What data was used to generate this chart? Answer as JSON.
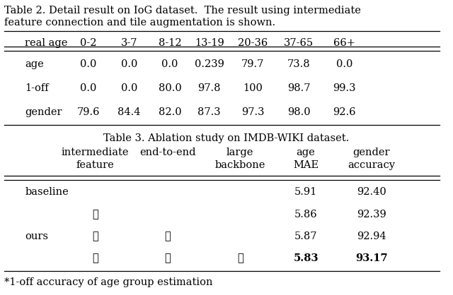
{
  "table2_title_line1": "Table 2. Detail result on IoG dataset.  The result using intermediate",
  "table2_title_line2": "feature connection and tile augmentation is shown.",
  "table2_col_headers": [
    "real age",
    "0-2",
    "3-7",
    "8-12",
    "13-19",
    "20-36",
    "37-65",
    "66+"
  ],
  "table2_rows": [
    [
      "age",
      "0.0",
      "0.0",
      "0.0",
      "0.239",
      "79.7",
      "73.8",
      "0.0"
    ],
    [
      "1-off",
      "0.0",
      "0.0",
      "80.0",
      "97.8",
      "100",
      "98.7",
      "99.3"
    ],
    [
      "gender",
      "79.6",
      "84.4",
      "82.0",
      "87.3",
      "97.3",
      "98.0",
      "92.6"
    ]
  ],
  "table3_title": "Table 3. Ablation study on IMDB-WIKI dataset.",
  "table3_col_headers": [
    "",
    "intermediate\nfeature",
    "end-to-end",
    "large\nbackbone",
    "age\nMAE",
    "gender\naccuracy"
  ],
  "table3_rows": [
    [
      "baseline",
      "",
      "",
      "",
      "5.91",
      "92.40"
    ],
    [
      "",
      "✓",
      "",
      "",
      "5.86",
      "92.39"
    ],
    [
      "ours",
      "✓",
      "✓",
      "",
      "5.87",
      "92.94"
    ],
    [
      "",
      "✓",
      "✓",
      "✓",
      "5.83",
      "93.17"
    ]
  ],
  "footnote": "*1-off accuracy of age group estimation",
  "bg_color": "#ffffff",
  "text_color": "#000000",
  "font_size": 10.5,
  "title_font_size": 10.5
}
